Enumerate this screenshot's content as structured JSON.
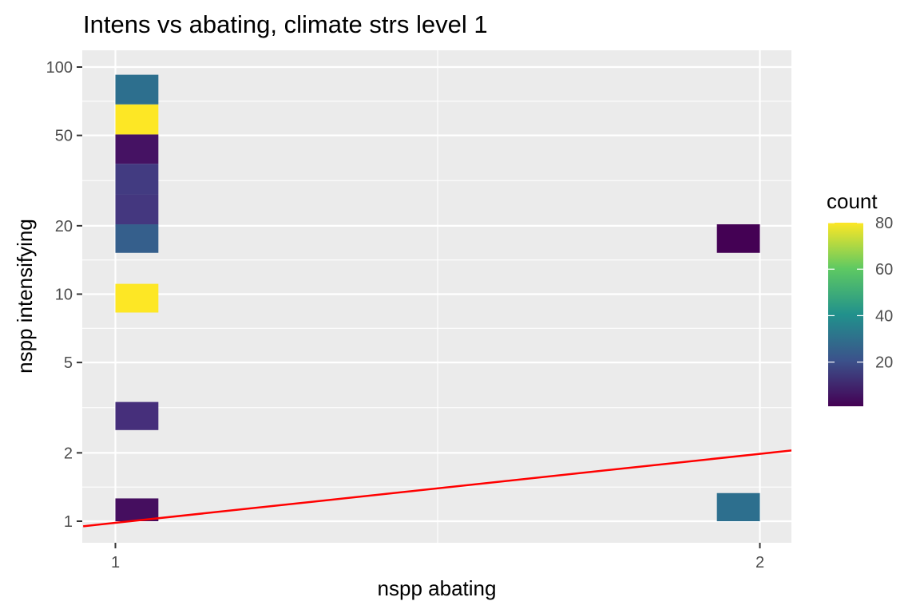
{
  "chart_data": {
    "type": "heatmap",
    "title": "Intens vs abating, climate strs level 1",
    "xlabel": "nspp abating",
    "ylabel": "nspp intensifying",
    "x_scale": "linear",
    "y_scale": "log10",
    "xlim": [
      0.95,
      2.05
    ],
    "ylim": [
      0.9,
      120
    ],
    "x_ticks": [
      1,
      2
    ],
    "x_tick_labels": [
      "1",
      "2"
    ],
    "y_ticks": [
      1,
      2,
      5,
      10,
      20,
      50,
      100
    ],
    "y_tick_labels": [
      "1",
      "2",
      "5",
      "10",
      "20",
      "50",
      "100"
    ],
    "grid": true,
    "cells": [
      {
        "x": [
          1,
          1.0667
        ],
        "y": [
          1.0,
          1.26
        ],
        "count": 4
      },
      {
        "x": [
          1,
          1.0667
        ],
        "y": [
          2.52,
          3.35
        ],
        "count": 12
      },
      {
        "x": [
          1,
          1.0667
        ],
        "y": [
          8.3,
          11.1
        ],
        "count": 80
      },
      {
        "x": [
          1,
          1.0667
        ],
        "y": [
          15.2,
          20.3
        ],
        "count": 25
      },
      {
        "x": [
          1,
          1.0667
        ],
        "y": [
          20.3,
          27.4
        ],
        "count": 14
      },
      {
        "x": [
          1,
          1.0667
        ],
        "y": [
          27.4,
          37.5
        ],
        "count": 15
      },
      {
        "x": [
          1,
          1.0667
        ],
        "y": [
          37.5,
          50.5
        ],
        "count": 5
      },
      {
        "x": [
          1,
          1.0667
        ],
        "y": [
          50.5,
          68.5
        ],
        "count": 80
      },
      {
        "x": [
          1,
          1.0667
        ],
        "y": [
          68.5,
          92.5
        ],
        "count": 30
      },
      {
        "x": [
          1.9333,
          2
        ],
        "y": [
          15.2,
          20.3
        ],
        "count": 1
      },
      {
        "x": [
          1.9333,
          2
        ],
        "y": [
          1.0,
          1.33
        ],
        "count": 30
      }
    ],
    "reference_line": {
      "label": "",
      "color": "#FF0000",
      "points": [
        [
          0.95,
          0.95
        ],
        [
          2.05,
          2.05
        ]
      ]
    },
    "legend": {
      "title": "count",
      "placement": "right",
      "min": 1,
      "max": 80,
      "ticks": [
        20,
        40,
        60,
        80
      ],
      "tick_labels": [
        "20",
        "40",
        "60",
        "80"
      ],
      "colormap": "viridis"
    }
  }
}
